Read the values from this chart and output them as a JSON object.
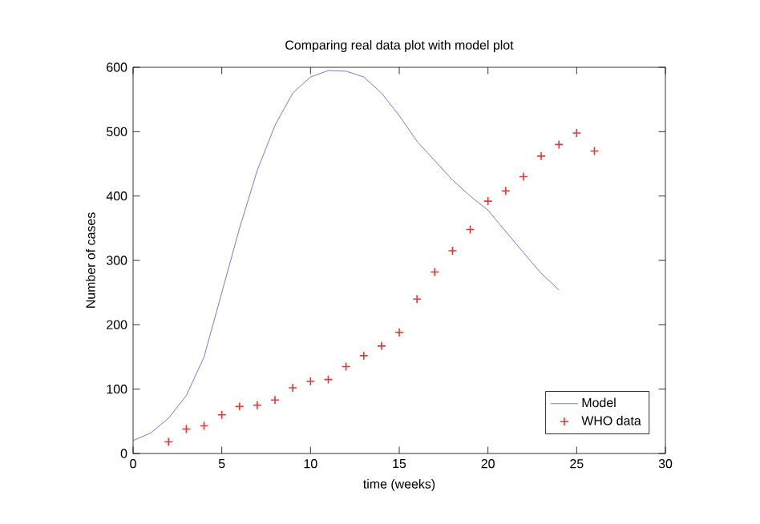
{
  "chart_data": {
    "type": "line",
    "title": "Comparing real data plot with model plot",
    "xlabel": "time (weeks)",
    "ylabel": "Number of cases",
    "xlim": [
      0,
      30
    ],
    "xticks": [
      0,
      5,
      10,
      15,
      20,
      25,
      30
    ],
    "ylim": [
      0,
      600
    ],
    "yticks": [
      0,
      100,
      200,
      300,
      400,
      500,
      600
    ],
    "legend": "bottom right",
    "grid": false,
    "series": [
      {
        "name": "Model",
        "color": "#5555bb",
        "marker": "none",
        "line_style": "solid",
        "x": [
          0,
          1,
          2,
          3,
          4,
          5,
          6,
          7,
          8,
          9,
          10,
          11,
          12,
          13,
          14,
          15,
          16,
          17,
          18,
          19,
          20,
          21,
          22,
          23,
          24
        ],
        "values": [
          20,
          32,
          55,
          90,
          150,
          250,
          350,
          440,
          510,
          560,
          585,
          595,
          594,
          585,
          560,
          525,
          485,
          455,
          425,
          400,
          378,
          345,
          312,
          280,
          254
        ]
      },
      {
        "name": "WHO data",
        "type": "scatter",
        "color": "#ee3333",
        "marker": "cross",
        "x": [
          2,
          3,
          4,
          5,
          6,
          7,
          8,
          9,
          10,
          11,
          12,
          13,
          14,
          15,
          16,
          17,
          18,
          19,
          20,
          21,
          22,
          23,
          24,
          25,
          26
        ],
        "values": [
          18,
          38,
          43,
          60,
          73,
          75,
          83,
          102,
          112,
          115,
          135,
          152,
          167,
          188,
          240,
          282,
          315,
          348,
          392,
          408,
          430,
          462,
          480,
          498,
          470
        ]
      }
    ]
  }
}
